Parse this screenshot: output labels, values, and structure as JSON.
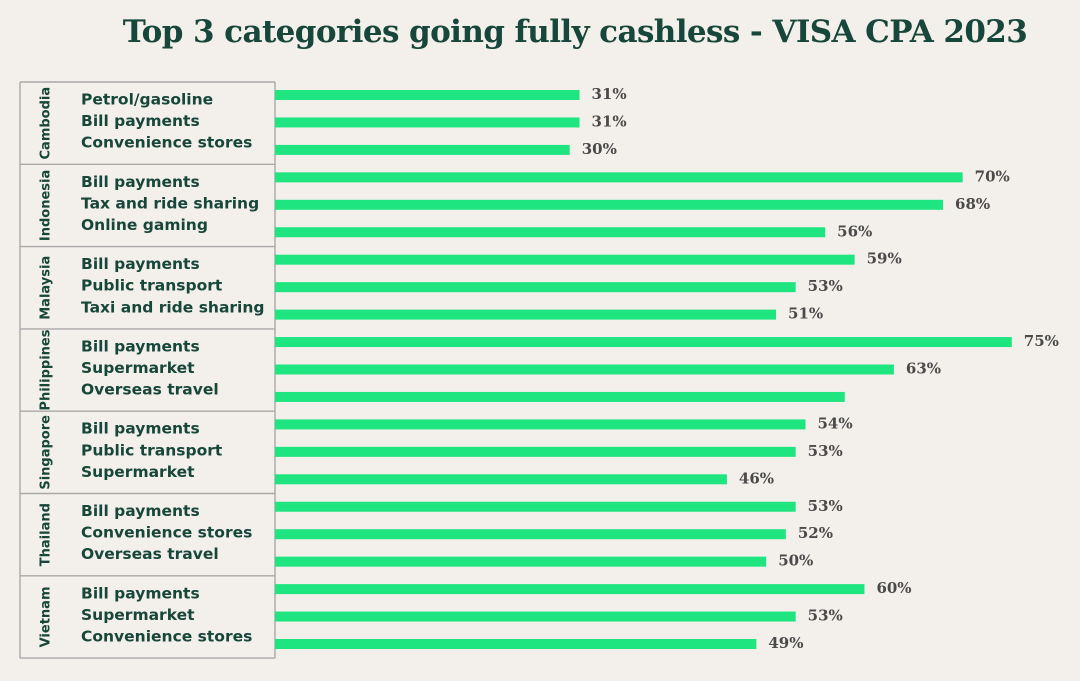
{
  "chart_data": {
    "type": "bar",
    "orientation": "horizontal",
    "title": "Top 3 categories going fully cashless - VISA CPA 2023",
    "value_suffix": "%",
    "xlim": [
      0,
      80
    ],
    "colors": {
      "bar": "#1fe581",
      "text": "#17463a",
      "value": "#4a4a4a",
      "background": "#f3efeb"
    },
    "groups": [
      {
        "name": "Cambodia",
        "items": [
          {
            "label": "Petrol/gasoline",
            "value": 31
          },
          {
            "label": "Bill payments",
            "value": 31
          },
          {
            "label": "Convenience stores",
            "value": 30
          }
        ]
      },
      {
        "name": "Indonesia",
        "items": [
          {
            "label": "Bill payments",
            "value": 70
          },
          {
            "label": "Tax and ride sharing",
            "value": 68
          },
          {
            "label": "Online gaming",
            "value": 56
          }
        ]
      },
      {
        "name": "Malaysia",
        "items": [
          {
            "label": "Bill payments",
            "value": 59
          },
          {
            "label": "Public transport",
            "value": 53
          },
          {
            "label": "Taxi and ride sharing",
            "value": 51
          }
        ]
      },
      {
        "name": "Philippines",
        "items": [
          {
            "label": "Bill payments",
            "value": 75
          },
          {
            "label": "Supermarket",
            "value": 63
          },
          {
            "label": "Overseas travel",
            "value": 58,
            "value_label": ""
          }
        ]
      },
      {
        "name": "Singapore",
        "items": [
          {
            "label": "Bill payments",
            "value": 54
          },
          {
            "label": "Public transport",
            "value": 53
          },
          {
            "label": "Supermarket",
            "value": 46
          }
        ]
      },
      {
        "name": "Thailand",
        "items": [
          {
            "label": "Bill payments",
            "value": 53
          },
          {
            "label": "Convenience stores",
            "value": 52
          },
          {
            "label": "Overseas travel",
            "value": 50
          }
        ]
      },
      {
        "name": "Vietnam",
        "items": [
          {
            "label": "Bill payments",
            "value": 60
          },
          {
            "label": "Supermarket",
            "value": 53
          },
          {
            "label": "Convenience stores",
            "value": 49
          }
        ]
      }
    ]
  }
}
